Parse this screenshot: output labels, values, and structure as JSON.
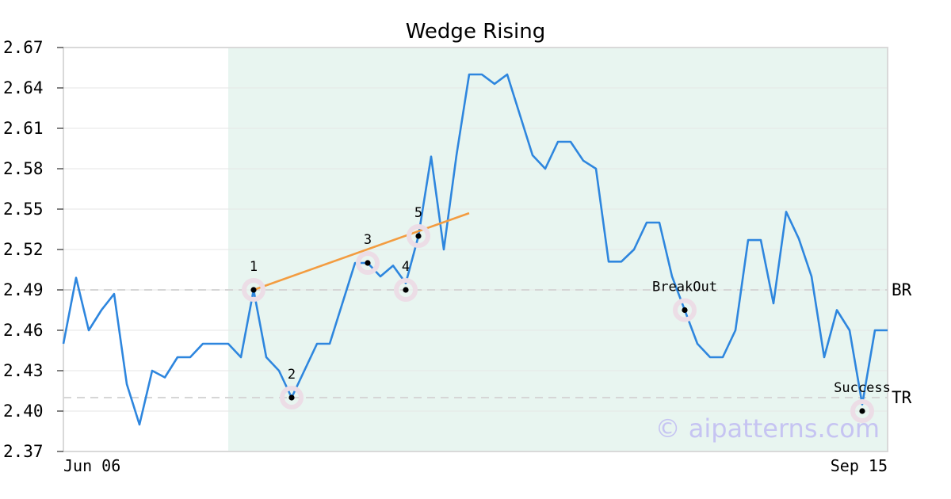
{
  "chart_data": {
    "type": "line",
    "title": "Wedge Rising",
    "watermark": "© aipatterns.com",
    "x_labels": {
      "start": "Jun 06",
      "end": "Sep 15"
    },
    "ylim": [
      2.37,
      2.67
    ],
    "yticks": [
      "2.37",
      "2.40",
      "2.43",
      "2.46",
      "2.49",
      "2.52",
      "2.55",
      "2.58",
      "2.61",
      "2.64",
      "2.67"
    ],
    "grid": true,
    "line_color": "#2e86de",
    "trend_color": "#f39c40",
    "highlight_color": "#e8f5f0",
    "series": [
      {
        "values": [
          2.45,
          2.499,
          2.46,
          2.475,
          2.487,
          2.42,
          2.39,
          2.43,
          2.425,
          2.44,
          2.44,
          2.45,
          2.45,
          2.45,
          2.44,
          2.49,
          2.44,
          2.43,
          2.41,
          2.43,
          2.45,
          2.45,
          2.48,
          2.51,
          2.51,
          2.5,
          2.508,
          2.495,
          2.53,
          2.589,
          2.52,
          2.59,
          2.65,
          2.65,
          2.643,
          2.65,
          2.62,
          2.59,
          2.58,
          2.6,
          2.6,
          2.586,
          2.58,
          2.511,
          2.511,
          2.52,
          2.54,
          2.54,
          2.5,
          2.475,
          2.45,
          2.44,
          2.44,
          2.46,
          2.527,
          2.527,
          2.48,
          2.548,
          2.528,
          2.5,
          2.44,
          2.475,
          2.46,
          2.405,
          2.46,
          2.46
        ]
      }
    ],
    "highlight_range": {
      "from_index": 13,
      "to_index": 65
    },
    "h_lines": [
      {
        "label": "BR",
        "value": 2.49
      },
      {
        "label": "TR",
        "value": 2.41
      }
    ],
    "trendline": [
      {
        "index": 15,
        "value": 2.49
      },
      {
        "index": 32,
        "value": 2.547
      }
    ],
    "points": [
      {
        "label": "1",
        "index": 15,
        "value": 2.49
      },
      {
        "label": "2",
        "index": 18,
        "value": 2.41
      },
      {
        "label": "3",
        "index": 24,
        "value": 2.51
      },
      {
        "label": "4",
        "index": 27,
        "value": 2.49
      },
      {
        "label": "5",
        "index": 28,
        "value": 2.53
      },
      {
        "label": "BreakOut",
        "index": 49,
        "value": 2.475
      },
      {
        "label": "Success",
        "index": 63,
        "value": 2.4
      }
    ]
  }
}
